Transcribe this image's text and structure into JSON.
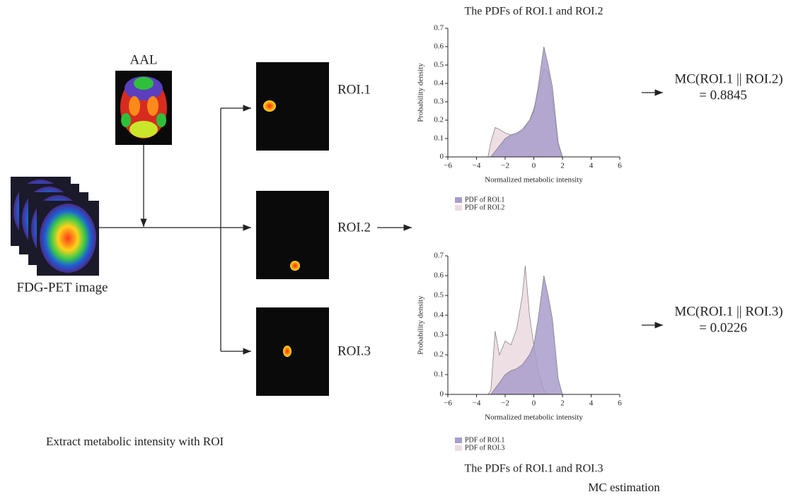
{
  "diagram": {
    "atlas_label": "AAL",
    "input_label": "FDG-PET image",
    "rois": [
      "ROI.1",
      "ROI.2",
      "ROI.3"
    ],
    "step_label": "Extract metabolic intensity with ROI",
    "stage_label": "MC estimation",
    "results": [
      {
        "expr": "MC(ROI.1 || ROI.2)",
        "value_text": "= 0.8845"
      },
      {
        "expr": "MC(ROI.1 || ROI.3)",
        "value_text": "= 0.0226"
      }
    ]
  },
  "chart_data": [
    {
      "type": "area",
      "title": "The PDFs of ROI.1 and ROI.2",
      "x_label": "Normalized metabolic intensity",
      "y_label": "Probability density",
      "x": [
        -3.2,
        -3,
        -2.7,
        -2.4,
        -2,
        -1.6,
        -1.2,
        -0.8,
        -0.6,
        -0.3,
        0,
        0.3,
        0.7,
        1,
        1.3,
        1.7,
        2
      ],
      "series": [
        {
          "name": "PDF of ROI.1",
          "color": "#a89ccb",
          "values": [
            0,
            0,
            0.03,
            0.06,
            0.1,
            0.12,
            0.13,
            0.15,
            0.17,
            0.2,
            0.25,
            0.38,
            0.6,
            0.5,
            0.38,
            0.08,
            0
          ]
        },
        {
          "name": "PDF of ROI.2",
          "color": "#ecdbe2",
          "values": [
            0,
            0.08,
            0.16,
            0.15,
            0.13,
            0.12,
            0.12,
            0.14,
            0.16,
            0.2,
            0.26,
            0.36,
            0.48,
            0.46,
            0.32,
            0.06,
            0
          ]
        }
      ],
      "xlim": [
        -6,
        6
      ],
      "ylim": [
        0,
        0.7
      ],
      "xticks": [
        {
          "value": -6,
          "label": "−6"
        },
        {
          "value": -4,
          "label": "−4"
        },
        {
          "value": -2,
          "label": "−2"
        },
        0,
        2,
        4,
        6
      ],
      "yticks": [
        0,
        0.1,
        0.2,
        0.3,
        0.4,
        0.5,
        0.6,
        0.7
      ]
    },
    {
      "type": "area",
      "title": "The PDFs of ROI.1 and ROI.3",
      "x_label": "Normalized metabolic intensity",
      "y_label": "Probability density",
      "x": [
        -3.2,
        -3,
        -2.7,
        -2.4,
        -2,
        -1.6,
        -1.2,
        -0.8,
        -0.6,
        -0.3,
        0,
        0.3,
        0.7,
        1,
        1.3,
        1.7,
        2
      ],
      "series": [
        {
          "name": "PDF of ROI.1",
          "color": "#a89ccb",
          "values": [
            0,
            0,
            0.03,
            0.06,
            0.1,
            0.12,
            0.13,
            0.15,
            0.17,
            0.2,
            0.25,
            0.38,
            0.6,
            0.5,
            0.38,
            0.08,
            0
          ]
        },
        {
          "name": "PDF of ROI.3",
          "color": "#ecdbe2",
          "values": [
            0,
            0.02,
            0.32,
            0.2,
            0.27,
            0.25,
            0.33,
            0.5,
            0.65,
            0.4,
            0.25,
            0.12,
            0.02,
            0,
            0,
            0,
            0
          ]
        }
      ],
      "xlim": [
        -6,
        6
      ],
      "ylim": [
        0,
        0.7
      ],
      "xticks": [
        {
          "value": -6,
          "label": "−6"
        },
        {
          "value": -4,
          "label": "−4"
        },
        {
          "value": -2,
          "label": "−2"
        },
        0,
        2,
        4,
        6
      ],
      "yticks": [
        0,
        0.1,
        0.2,
        0.3,
        0.4,
        0.5,
        0.6,
        0.7
      ]
    }
  ]
}
